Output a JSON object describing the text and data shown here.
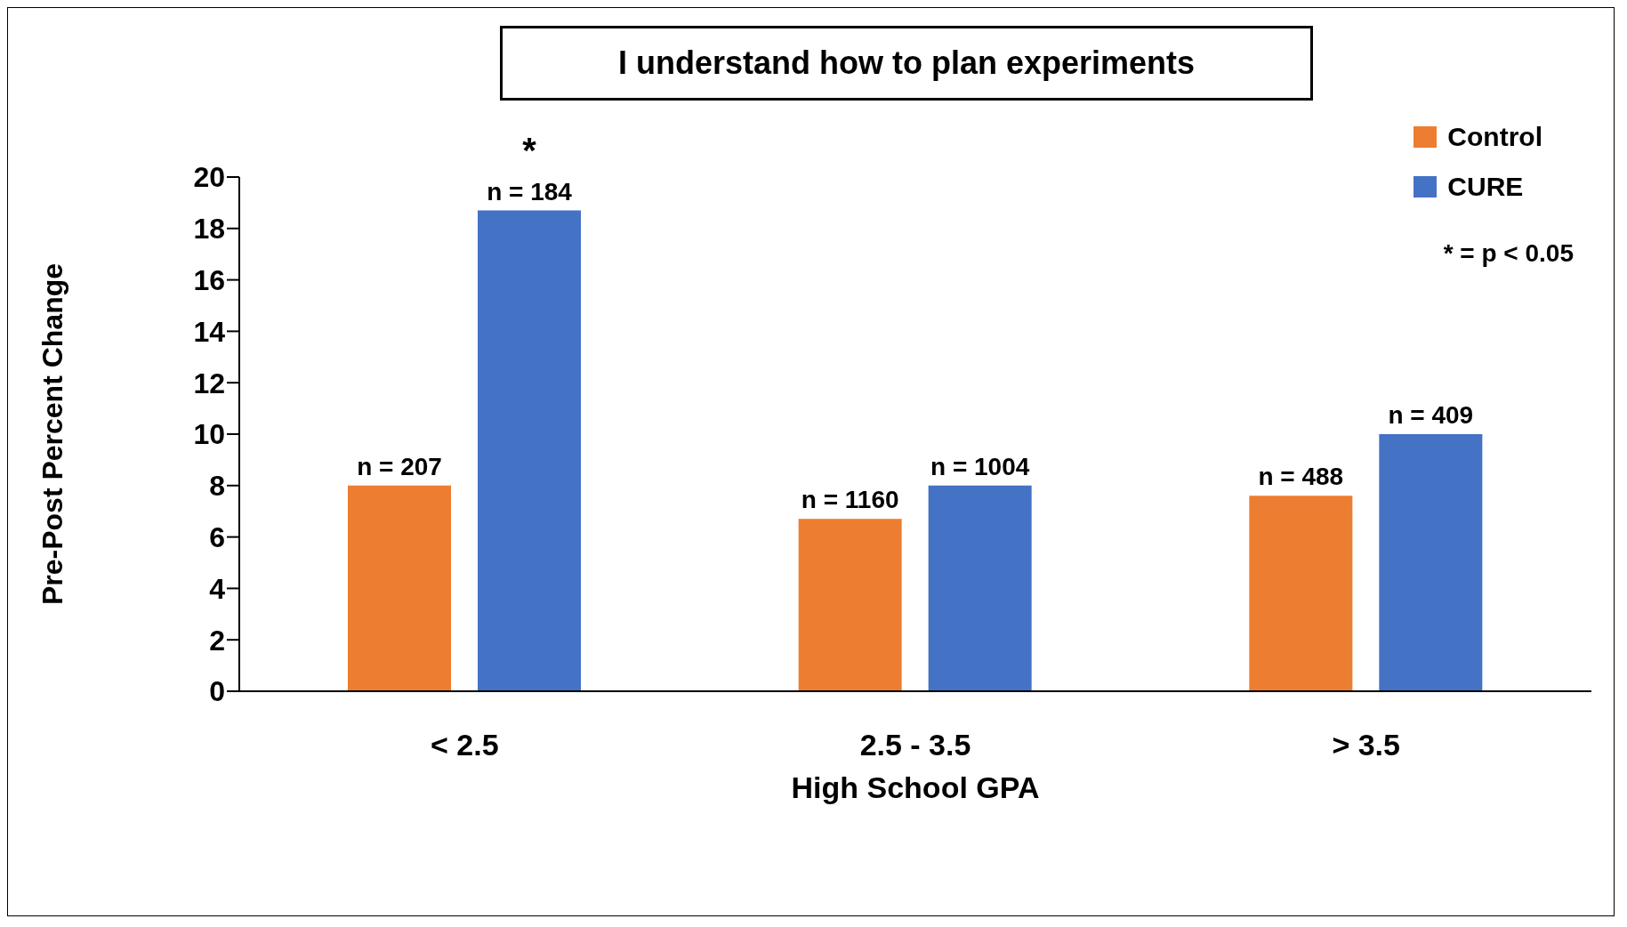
{
  "chart_data": {
    "type": "bar",
    "title": "I understand how to plan experiments",
    "xlabel": "High School GPA",
    "ylabel": "Pre-Post Percent Change",
    "categories": [
      "< 2.5",
      "2.5 - 3.5",
      "> 3.5"
    ],
    "series": [
      {
        "name": "Control",
        "color": "#ed7d31",
        "values": [
          8.0,
          6.7,
          7.6
        ]
      },
      {
        "name": "CURE",
        "color": "#4472c4",
        "values": [
          18.7,
          8.0,
          10.0
        ]
      }
    ],
    "ylim": [
      0,
      20
    ],
    "yticks": [
      0,
      2,
      4,
      6,
      8,
      10,
      12,
      14,
      16,
      18,
      20
    ],
    "grid": false,
    "legend": "top right",
    "annotations": [
      "n = 207",
      "n = 184",
      "*",
      "n = 1160",
      "n = 1004",
      "n = 488",
      "n = 409",
      "* = p < 0.05"
    ]
  }
}
